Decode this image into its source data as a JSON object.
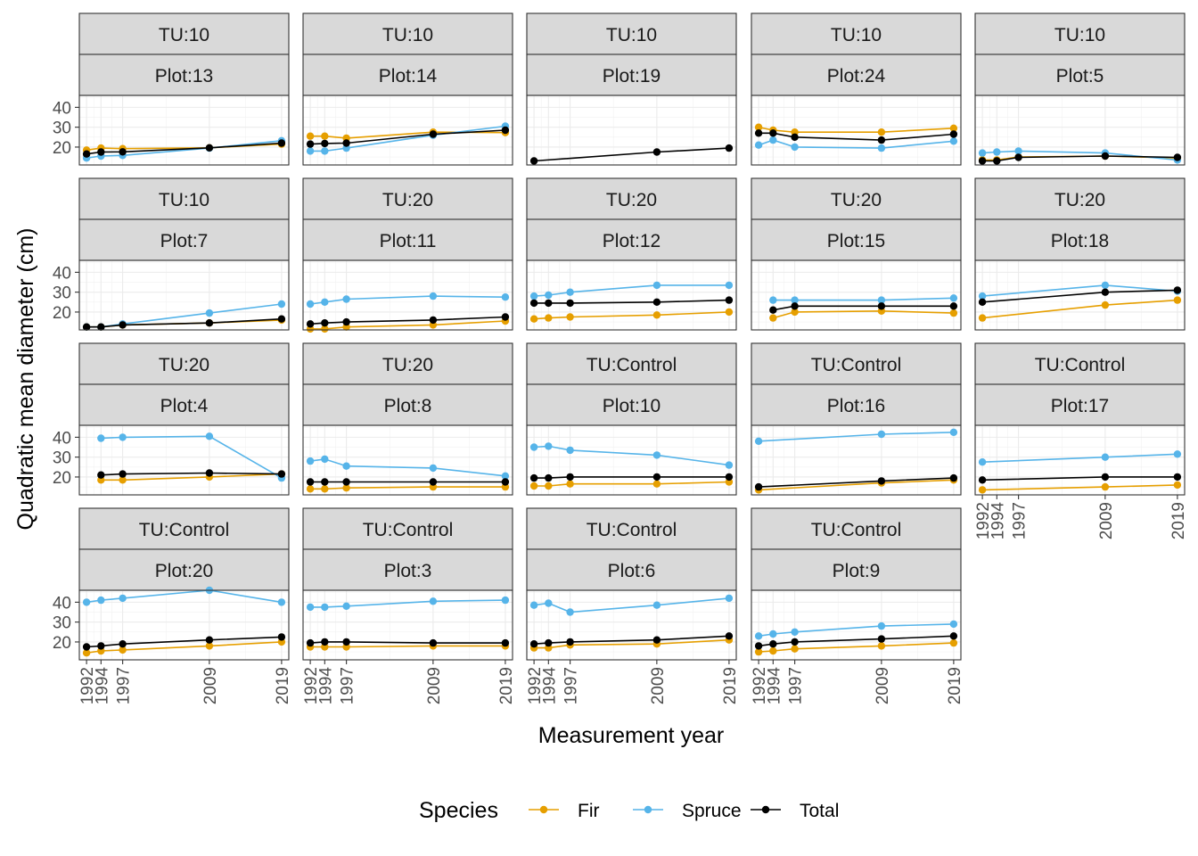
{
  "chart_data": {
    "type": "line",
    "xlabel": "Measurement year",
    "ylabel": "Quadratic mean diameter (cm)",
    "x_ticks": [
      1992,
      1994,
      1997,
      2009,
      2019
    ],
    "y_ticks": [
      20,
      30,
      40
    ],
    "xlim": [
      1991,
      2020
    ],
    "ylim": [
      11,
      46
    ],
    "legend": {
      "title": "Species",
      "position": "bottom",
      "entries": [
        {
          "name": "Fir",
          "color": "#E69F00"
        },
        {
          "name": "Spruce",
          "color": "#56B4E9"
        },
        {
          "name": "Total",
          "color": "#000000"
        }
      ]
    },
    "panels": [
      {
        "tu": "TU:10",
        "plot": "Plot:13",
        "fir": [
          [
            1992,
            18.5
          ],
          [
            1994,
            19.5
          ],
          [
            1997,
            19.2
          ],
          [
            2009,
            19.6
          ],
          [
            2019,
            21.5
          ]
        ],
        "spruce": [
          [
            1992,
            14.5
          ],
          [
            1994,
            15.5
          ],
          [
            1997,
            15.8
          ],
          [
            2009,
            19.5
          ],
          [
            2019,
            23.2
          ]
        ],
        "total": [
          [
            1992,
            16.5
          ],
          [
            1994,
            17.5
          ],
          [
            1997,
            17.6
          ],
          [
            2009,
            19.6
          ],
          [
            2019,
            22.0
          ]
        ]
      },
      {
        "tu": "TU:10",
        "plot": "Plot:14",
        "fir": [
          [
            1992,
            25.5
          ],
          [
            1994,
            25.5
          ],
          [
            1997,
            24.5
          ],
          [
            2009,
            27.5
          ],
          [
            2019,
            27.3
          ]
        ],
        "spruce": [
          [
            1992,
            18.0
          ],
          [
            1994,
            18.0
          ],
          [
            1997,
            19.5
          ],
          [
            2009,
            26.0
          ],
          [
            2019,
            30.5
          ]
        ],
        "total": [
          [
            1992,
            21.5
          ],
          [
            1994,
            21.8
          ],
          [
            1997,
            22.0
          ],
          [
            2009,
            26.5
          ],
          [
            2019,
            28.5
          ]
        ]
      },
      {
        "tu": "TU:10",
        "plot": "Plot:19",
        "fir": [],
        "spruce": [],
        "total": [
          [
            1992,
            13.0
          ],
          [
            2009,
            17.5
          ],
          [
            2019,
            19.5
          ]
        ]
      },
      {
        "tu": "TU:10",
        "plot": "Plot:24",
        "fir": [
          [
            1992,
            30.0
          ],
          [
            1994,
            28.5
          ],
          [
            1997,
            27.5
          ],
          [
            2009,
            27.5
          ],
          [
            2019,
            29.5
          ]
        ],
        "spruce": [
          [
            1992,
            21.0
          ],
          [
            1994,
            23.5
          ],
          [
            1997,
            20.0
          ],
          [
            2009,
            19.5
          ],
          [
            2019,
            23.0
          ]
        ],
        "total": [
          [
            1992,
            27.0
          ],
          [
            1994,
            27.0
          ],
          [
            1997,
            25.0
          ],
          [
            2009,
            23.5
          ],
          [
            2019,
            26.5
          ]
        ]
      },
      {
        "tu": "TU:10",
        "plot": "Plot:5",
        "fir": [
          [
            1992,
            13.5
          ],
          [
            1994,
            13.5
          ],
          [
            1997,
            15.0
          ],
          [
            2009,
            15.5
          ],
          [
            2019,
            14.5
          ]
        ],
        "spruce": [
          [
            1992,
            17.0
          ],
          [
            1994,
            17.5
          ],
          [
            1997,
            18.0
          ],
          [
            2009,
            17.0
          ],
          [
            2019,
            13.5
          ]
        ],
        "total": [
          [
            1992,
            13.0
          ],
          [
            1994,
            13.0
          ],
          [
            1997,
            14.8
          ],
          [
            2009,
            15.5
          ],
          [
            2019,
            14.8
          ]
        ]
      },
      {
        "tu": "TU:10",
        "plot": "Plot:7",
        "fir": [
          [
            1992,
            12.5
          ],
          [
            1994,
            12.5
          ],
          [
            1997,
            13.5
          ],
          [
            2009,
            14.5
          ],
          [
            2019,
            16.0
          ]
        ],
        "spruce": [
          [
            1992,
            12.5
          ],
          [
            1994,
            12.5
          ],
          [
            1997,
            14.0
          ],
          [
            2009,
            19.5
          ],
          [
            2019,
            24.0
          ]
        ],
        "total": [
          [
            1992,
            12.5
          ],
          [
            1994,
            12.5
          ],
          [
            1997,
            13.5
          ],
          [
            2009,
            14.5
          ],
          [
            2019,
            16.5
          ]
        ]
      },
      {
        "tu": "TU:20",
        "plot": "Plot:11",
        "fir": [
          [
            1992,
            11.5
          ],
          [
            1994,
            11.5
          ],
          [
            1997,
            12.5
          ],
          [
            2009,
            13.5
          ],
          [
            2019,
            15.5
          ]
        ],
        "spruce": [
          [
            1992,
            24.0
          ],
          [
            1994,
            25.0
          ],
          [
            1997,
            26.5
          ],
          [
            2009,
            28.0
          ],
          [
            2019,
            27.5
          ]
        ],
        "total": [
          [
            1992,
            14.0
          ],
          [
            1994,
            14.5
          ],
          [
            1997,
            15.0
          ],
          [
            2009,
            16.0
          ],
          [
            2019,
            17.5
          ]
        ]
      },
      {
        "tu": "TU:20",
        "plot": "Plot:12",
        "fir": [
          [
            1992,
            16.5
          ],
          [
            1994,
            17.0
          ],
          [
            1997,
            17.5
          ],
          [
            2009,
            18.5
          ],
          [
            2019,
            20.0
          ]
        ],
        "spruce": [
          [
            1992,
            28.0
          ],
          [
            1994,
            28.5
          ],
          [
            1997,
            30.0
          ],
          [
            2009,
            33.5
          ],
          [
            2019,
            33.5
          ]
        ],
        "total": [
          [
            1992,
            24.5
          ],
          [
            1994,
            24.5
          ],
          [
            1997,
            24.5
          ],
          [
            2009,
            25.0
          ],
          [
            2019,
            26.0
          ]
        ]
      },
      {
        "tu": "TU:20",
        "plot": "Plot:15",
        "fir": [
          [
            1994,
            17.0
          ],
          [
            1997,
            20.0
          ],
          [
            2009,
            20.5
          ],
          [
            2019,
            19.5
          ]
        ],
        "spruce": [
          [
            1994,
            26.0
          ],
          [
            1997,
            26.0
          ],
          [
            2009,
            26.0
          ],
          [
            2019,
            27.0
          ]
        ],
        "total": [
          [
            1994,
            21.0
          ],
          [
            1997,
            23.0
          ],
          [
            2009,
            23.0
          ],
          [
            2019,
            23.0
          ]
        ]
      },
      {
        "tu": "TU:20",
        "plot": "Plot:18",
        "fir": [
          [
            1992,
            17.0
          ],
          [
            2009,
            23.5
          ],
          [
            2019,
            26.0
          ]
        ],
        "spruce": [
          [
            1992,
            28.0
          ],
          [
            2009,
            33.5
          ],
          [
            2019,
            30.5
          ]
        ],
        "total": [
          [
            1992,
            25.0
          ],
          [
            2009,
            30.0
          ],
          [
            2019,
            31.0
          ]
        ]
      },
      {
        "tu": "TU:20",
        "plot": "Plot:4",
        "fir": [
          [
            1994,
            18.5
          ],
          [
            1997,
            18.5
          ],
          [
            2009,
            20.0
          ],
          [
            2019,
            21.5
          ]
        ],
        "spruce": [
          [
            1994,
            39.5
          ],
          [
            1997,
            40.0
          ],
          [
            2009,
            40.5
          ],
          [
            2019,
            19.5
          ]
        ],
        "total": [
          [
            1994,
            21.0
          ],
          [
            1997,
            21.5
          ],
          [
            2009,
            22.0
          ],
          [
            2019,
            21.5
          ]
        ]
      },
      {
        "tu": "TU:20",
        "plot": "Plot:8",
        "fir": [
          [
            1992,
            14.0
          ],
          [
            1994,
            14.0
          ],
          [
            1997,
            14.5
          ],
          [
            2009,
            15.0
          ],
          [
            2019,
            15.0
          ]
        ],
        "spruce": [
          [
            1992,
            28.0
          ],
          [
            1994,
            29.0
          ],
          [
            1997,
            25.5
          ],
          [
            2009,
            24.5
          ],
          [
            2019,
            20.5
          ]
        ],
        "total": [
          [
            1992,
            17.5
          ],
          [
            1994,
            17.5
          ],
          [
            1997,
            17.5
          ],
          [
            2009,
            17.5
          ],
          [
            2019,
            17.5
          ]
        ]
      },
      {
        "tu": "TU:Control",
        "plot": "Plot:10",
        "fir": [
          [
            1992,
            15.5
          ],
          [
            1994,
            15.5
          ],
          [
            1997,
            16.5
          ],
          [
            2009,
            16.5
          ],
          [
            2019,
            17.5
          ]
        ],
        "spruce": [
          [
            1992,
            35.0
          ],
          [
            1994,
            35.5
          ],
          [
            1997,
            33.5
          ],
          [
            2009,
            31.0
          ],
          [
            2019,
            26.0
          ]
        ],
        "total": [
          [
            1992,
            19.5
          ],
          [
            1994,
            19.5
          ],
          [
            1997,
            20.0
          ],
          [
            2009,
            20.0
          ],
          [
            2019,
            20.0
          ]
        ]
      },
      {
        "tu": "TU:Control",
        "plot": "Plot:16",
        "fir": [
          [
            1992,
            13.5
          ],
          [
            2009,
            17.0
          ],
          [
            2019,
            18.5
          ]
        ],
        "spruce": [
          [
            1992,
            38.0
          ],
          [
            2009,
            41.5
          ],
          [
            2019,
            42.5
          ]
        ],
        "total": [
          [
            1992,
            15.0
          ],
          [
            2009,
            18.0
          ],
          [
            2019,
            19.5
          ]
        ]
      },
      {
        "tu": "TU:Control",
        "plot": "Plot:17",
        "fir": [
          [
            1992,
            13.5
          ],
          [
            2009,
            15.0
          ],
          [
            2019,
            16.0
          ]
        ],
        "spruce": [
          [
            1992,
            27.5
          ],
          [
            2009,
            30.0
          ],
          [
            2019,
            31.5
          ]
        ],
        "total": [
          [
            1992,
            18.5
          ],
          [
            2009,
            20.0
          ],
          [
            2019,
            20.0
          ]
        ]
      },
      {
        "tu": "TU:Control",
        "plot": "Plot:20",
        "fir": [
          [
            1992,
            14.5
          ],
          [
            1994,
            15.5
          ],
          [
            1997,
            16.0
          ],
          [
            2009,
            18.0
          ],
          [
            2019,
            20.0
          ]
        ],
        "spruce": [
          [
            1992,
            40.0
          ],
          [
            1994,
            41.0
          ],
          [
            1997,
            42.0
          ],
          [
            2009,
            46.0
          ],
          [
            2019,
            40.0
          ]
        ],
        "total": [
          [
            1992,
            17.5
          ],
          [
            1994,
            18.0
          ],
          [
            1997,
            19.0
          ],
          [
            2009,
            21.0
          ],
          [
            2019,
            22.5
          ]
        ]
      },
      {
        "tu": "TU:Control",
        "plot": "Plot:3",
        "fir": [
          [
            1992,
            17.5
          ],
          [
            1994,
            17.5
          ],
          [
            1997,
            17.5
          ],
          [
            2009,
            18.0
          ],
          [
            2019,
            18.0
          ]
        ],
        "spruce": [
          [
            1992,
            37.5
          ],
          [
            1994,
            37.5
          ],
          [
            1997,
            38.0
          ],
          [
            2009,
            40.5
          ],
          [
            2019,
            41.0
          ]
        ],
        "total": [
          [
            1992,
            19.5
          ],
          [
            1994,
            20.0
          ],
          [
            1997,
            20.0
          ],
          [
            2009,
            19.5
          ],
          [
            2019,
            19.5
          ]
        ]
      },
      {
        "tu": "TU:Control",
        "plot": "Plot:6",
        "fir": [
          [
            1992,
            17.0
          ],
          [
            1994,
            17.0
          ],
          [
            1997,
            18.5
          ],
          [
            2009,
            19.0
          ],
          [
            2019,
            21.0
          ]
        ],
        "spruce": [
          [
            1992,
            38.5
          ],
          [
            1994,
            39.5
          ],
          [
            1997,
            35.0
          ],
          [
            2009,
            38.5
          ],
          [
            2019,
            42.0
          ]
        ],
        "total": [
          [
            1992,
            19.0
          ],
          [
            1994,
            19.5
          ],
          [
            1997,
            20.0
          ],
          [
            2009,
            21.0
          ],
          [
            2019,
            23.0
          ]
        ]
      },
      {
        "tu": "TU:Control",
        "plot": "Plot:9",
        "fir": [
          [
            1992,
            15.0
          ],
          [
            1994,
            15.5
          ],
          [
            1997,
            16.5
          ],
          [
            2009,
            18.0
          ],
          [
            2019,
            19.5
          ]
        ],
        "spruce": [
          [
            1992,
            23.0
          ],
          [
            1994,
            24.0
          ],
          [
            1997,
            25.0
          ],
          [
            2009,
            28.0
          ],
          [
            2019,
            29.0
          ]
        ],
        "total": [
          [
            1992,
            18.0
          ],
          [
            1994,
            19.0
          ],
          [
            1997,
            20.0
          ],
          [
            2009,
            21.5
          ],
          [
            2019,
            23.0
          ]
        ]
      }
    ]
  }
}
